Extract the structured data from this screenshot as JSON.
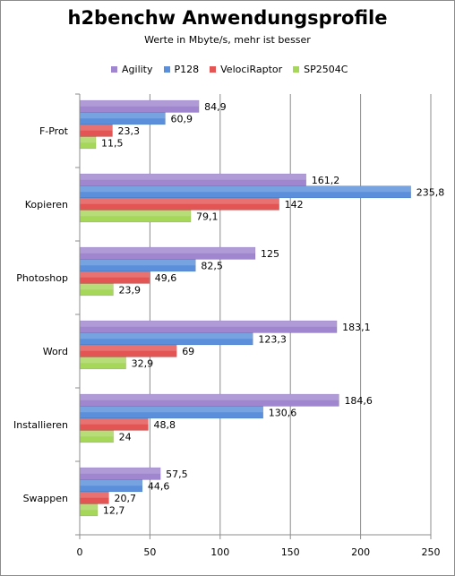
{
  "chart_data": {
    "type": "bar",
    "orientation": "horizontal",
    "title": "h2benchw Anwendungsprofile",
    "subtitle": "Werte in Mbyte/s,  mehr ist besser",
    "categories": [
      "F-Prot",
      "Kopieren",
      "Photoshop",
      "Word",
      "Installieren",
      "Swappen"
    ],
    "series": [
      {
        "name": "Agility",
        "color": "#9f86cf",
        "values": [
          84.9,
          161.2,
          125,
          183.1,
          184.6,
          57.5
        ],
        "labels": [
          "84,9",
          "161,2",
          "125",
          "183,1",
          "184,6",
          "57,5"
        ]
      },
      {
        "name": "P128",
        "color": "#5b8fdb",
        "values": [
          60.9,
          235.8,
          82.5,
          123.3,
          130.6,
          44.6
        ],
        "labels": [
          "60,9",
          "235,8",
          "82,5",
          "123,3",
          "130,6",
          "44,6"
        ]
      },
      {
        "name": "VelociRaptor",
        "color": "#e35454",
        "values": [
          23.3,
          142,
          49.6,
          69,
          48.8,
          20.7
        ],
        "labels": [
          "23,3",
          "142",
          "49,6",
          "69",
          "48,8",
          "20,7"
        ]
      },
      {
        "name": "SP2504C",
        "color": "#a6d65a",
        "values": [
          11.5,
          79.1,
          23.9,
          32.9,
          24,
          12.7
        ],
        "labels": [
          "11,5",
          "79,1",
          "23,9",
          "32,9",
          "24",
          "12,7"
        ]
      }
    ],
    "xlim": [
      0,
      250
    ],
    "xticks": [
      0,
      50,
      100,
      150,
      200,
      250
    ],
    "grid": true,
    "legend_position": "top"
  }
}
